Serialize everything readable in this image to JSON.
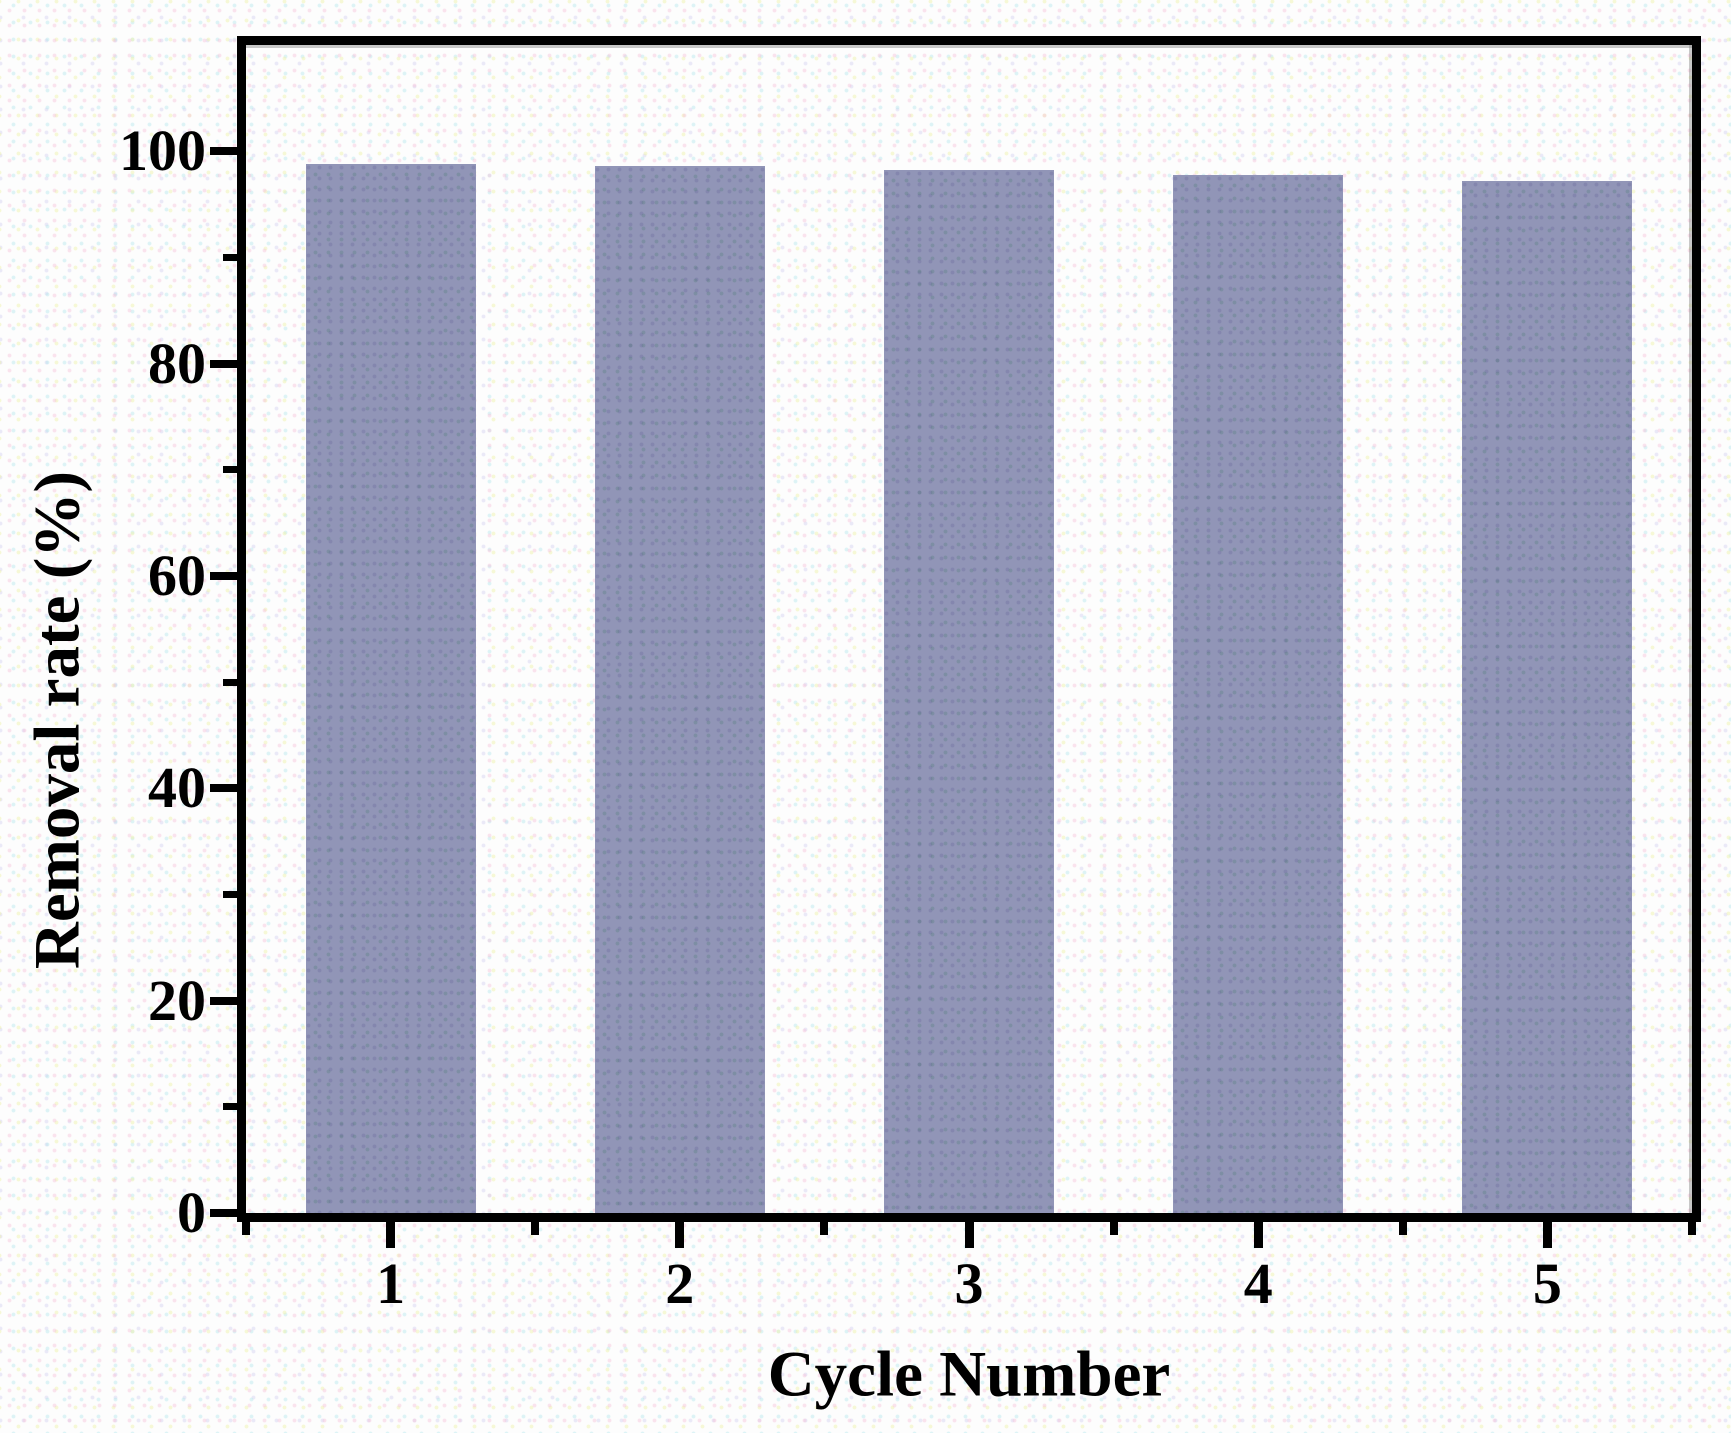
{
  "chart_data": {
    "type": "bar",
    "title": "",
    "xlabel": "Cycle Number",
    "ylabel": "Removal rate (%)",
    "categories": [
      "1",
      "2",
      "3",
      "4",
      "5"
    ],
    "values": [
      98.8,
      98.6,
      98.2,
      97.8,
      97.2
    ],
    "series_name": "Removal rate",
    "xlim": [
      0.5,
      5.5
    ],
    "ylim": [
      0,
      110
    ],
    "yticks_major": [
      0,
      20,
      40,
      60,
      80,
      100
    ],
    "yticks_minor": [
      10,
      30,
      50,
      70,
      90
    ],
    "xticks_major": [
      1,
      2,
      3,
      4,
      5
    ],
    "xticks_minor": [
      0.5,
      1.5,
      2.5,
      3.5,
      4.5,
      5.5
    ],
    "grid": false,
    "legend": null,
    "bar_color": "#9195b7",
    "axis_color": "#000000",
    "text_color": "#000000",
    "background_color": "#fdfdfd"
  }
}
